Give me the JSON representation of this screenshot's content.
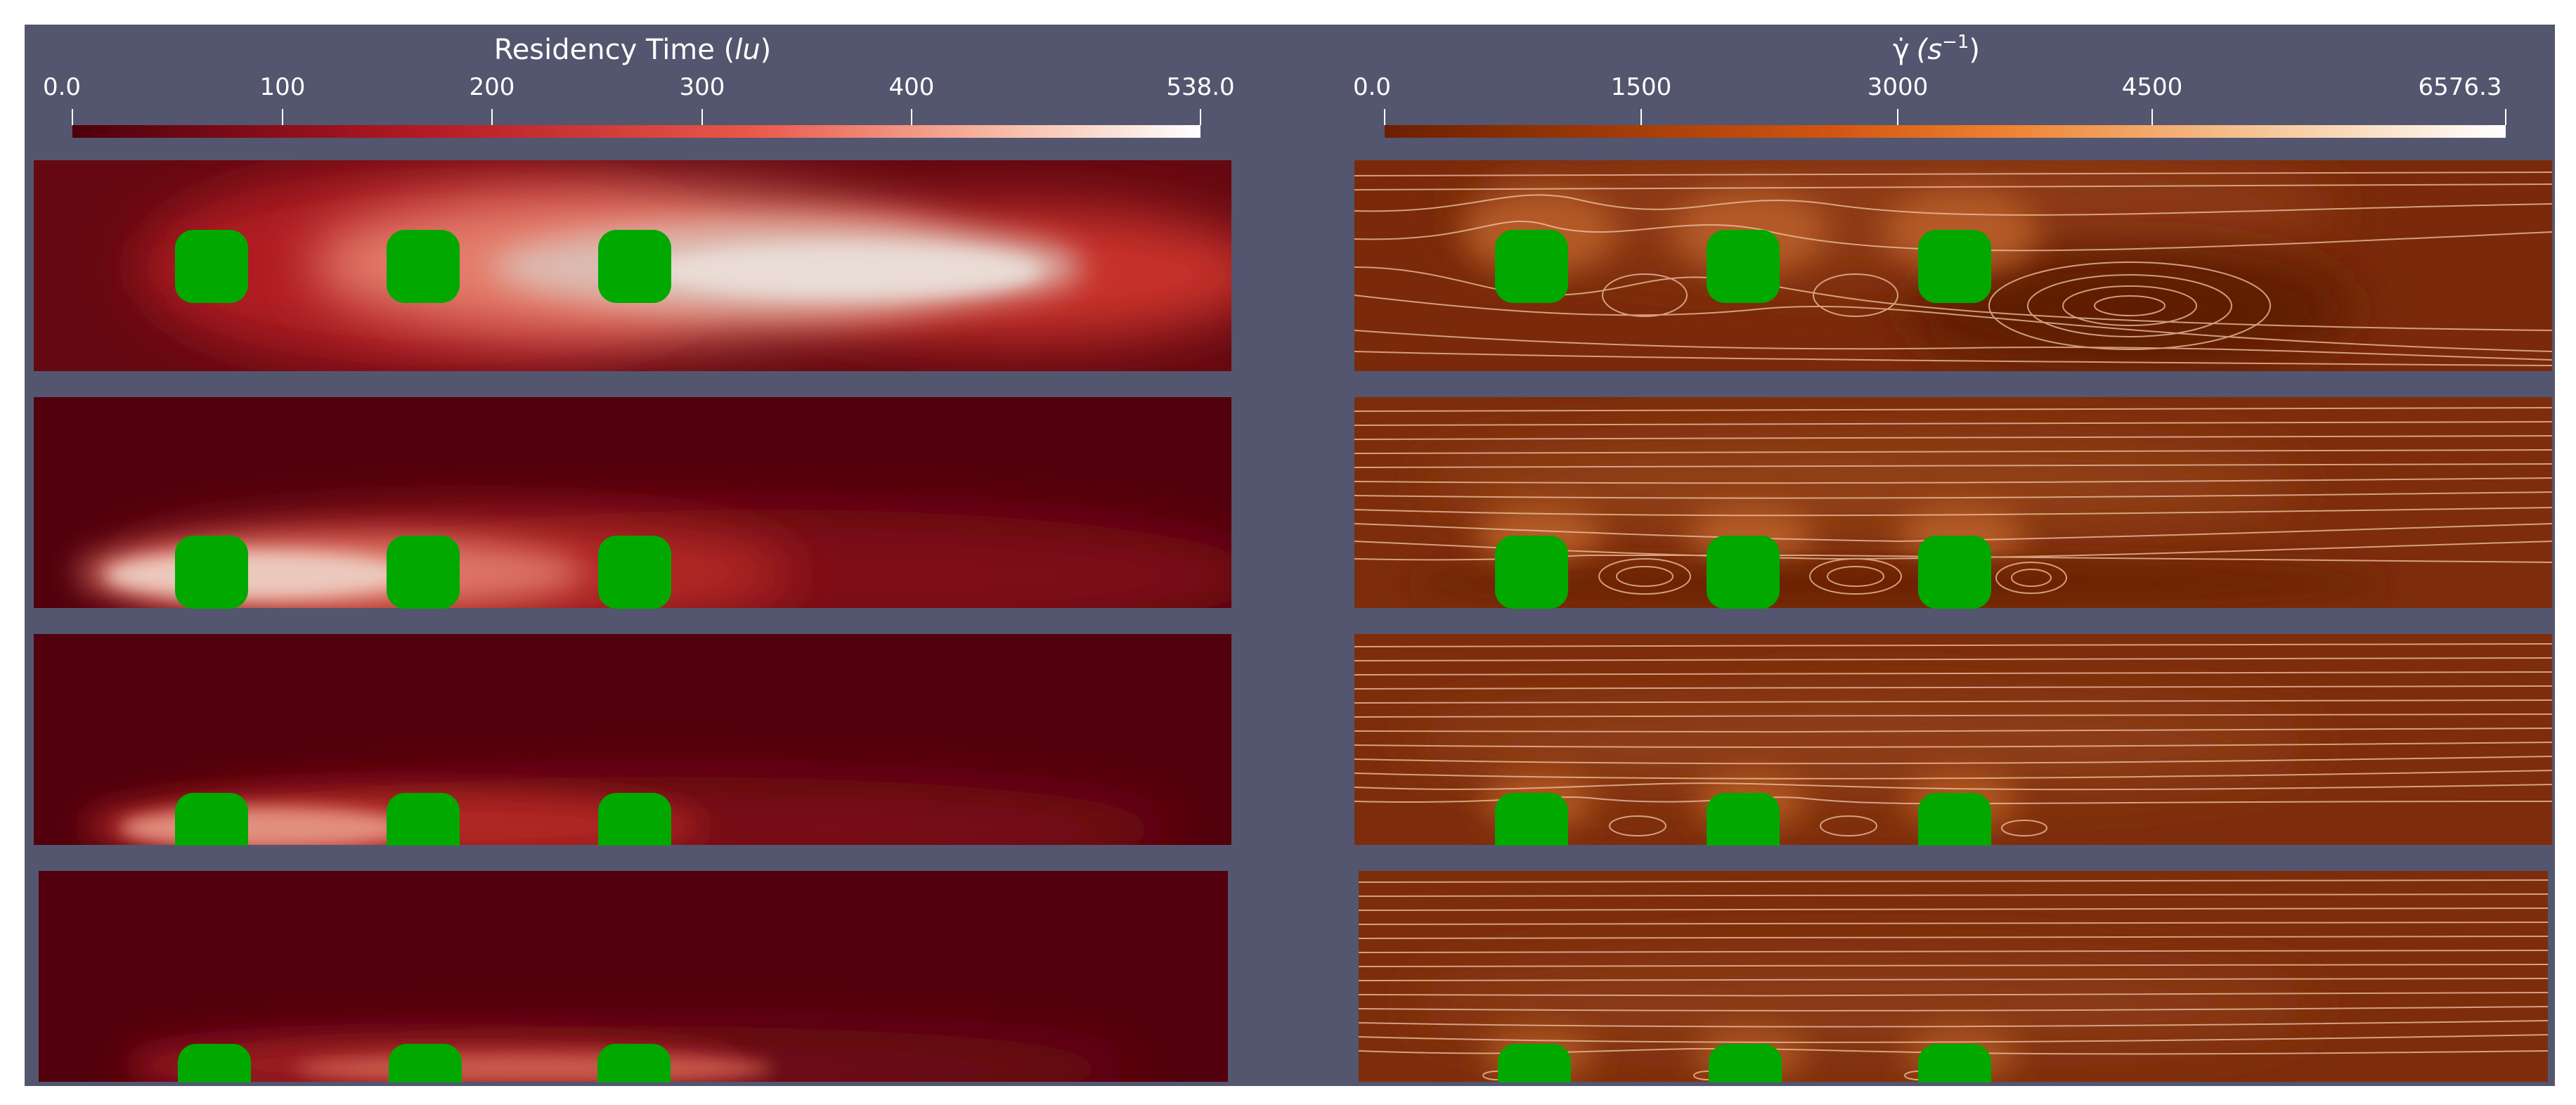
{
  "figure": {
    "background_color": "#ffffff",
    "frame_color": "#53566e",
    "obstacle_color": "#00a800",
    "streamline_color": "#f2c7a8",
    "obstacles_per_panel": 3
  },
  "colorbars": [
    {
      "title_plain": "Residency Time (",
      "title_italic": "lu",
      "title_close": ")",
      "ticks": [
        "0.0",
        "100",
        "200",
        "300",
        "400",
        "538.0"
      ],
      "colors": [
        "#4c000c",
        "#e62a2a",
        "#f5b39c",
        "#ffffff"
      ]
    },
    {
      "title_symbol": "γ̇",
      "title_unit": "(s",
      "title_exponent": "−1",
      "title_close": ")",
      "ticks": [
        "0.0",
        "1500",
        "3000",
        "4500",
        "6576.3"
      ],
      "colors": [
        "#6b1f00",
        "#e36a1a",
        "#f7c99d",
        "#ffffff"
      ]
    }
  ],
  "panels_left": [
    {
      "background": "#660811",
      "obstacle_row": "center"
    },
    {
      "background": "#52000d",
      "obstacle_row": "bottom"
    },
    {
      "background": "#52000d",
      "obstacle_row": "bottom"
    },
    {
      "background": "#52000d",
      "obstacle_row": "bottom"
    }
  ],
  "panels_right": [
    {
      "background": "#7a2a0a",
      "obstacle_row": "center",
      "flow": "recirculating"
    },
    {
      "background": "#7d2d0c",
      "obstacle_row": "bottom",
      "flow": "cavity-vortices"
    },
    {
      "background": "#7d2d0c",
      "obstacle_row": "bottom",
      "flow": "near-laminar"
    },
    {
      "background": "#7d2d0c",
      "obstacle_row": "bottom",
      "flow": "laminar"
    }
  ]
}
